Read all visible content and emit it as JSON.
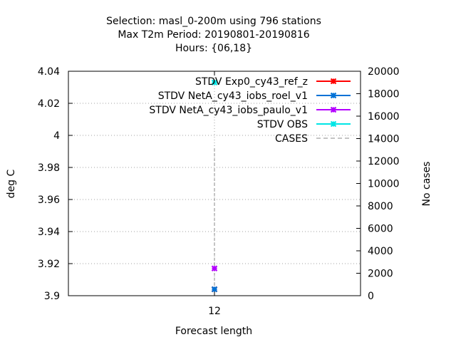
{
  "chart_data": {
    "type": "scatter",
    "title_lines": [
      "Selection: masl_0-200m using   796 stations",
      "Max T2m   Period: 20190801-20190816",
      "Hours: {06,18}"
    ],
    "xlabel": "Forecast length",
    "ylabel": "deg C",
    "y2label": "No cases",
    "x_categories": [
      "12"
    ],
    "ylim": [
      3.9,
      4.04
    ],
    "y_ticks": [
      "3.9",
      "3.92",
      "3.94",
      "3.96",
      "3.98",
      "4",
      "4.02",
      "4.04"
    ],
    "y2lim": [
      0,
      20000
    ],
    "y2_ticks": [
      "0",
      "2000",
      "4000",
      "6000",
      "8000",
      "10000",
      "12000",
      "14000",
      "16000",
      "18000",
      "20000"
    ],
    "grid": true,
    "legend_position": "top-right",
    "series": [
      {
        "name": "STDV Exp0_cy43_ref_z",
        "color": "#ff0000",
        "axis": "y",
        "x": "12",
        "y": 3.904
      },
      {
        "name": "STDV NetA_cy43_iobs_roel_v1",
        "color": "#0072d6",
        "axis": "y",
        "x": "12",
        "y": 3.904
      },
      {
        "name": "STDV NetA_cy43_iobs_paulo_v1",
        "color": "#b400ff",
        "axis": "y",
        "x": "12",
        "y": 3.917
      },
      {
        "name": "STDV OBS",
        "color": "#00e5e5",
        "axis": "y",
        "x": "12",
        "y": 4.033
      },
      {
        "name": "CASES",
        "color": "#888888",
        "axis": "y2",
        "x": "12",
        "y": 13400,
        "style": "dashed-impulse"
      }
    ]
  }
}
